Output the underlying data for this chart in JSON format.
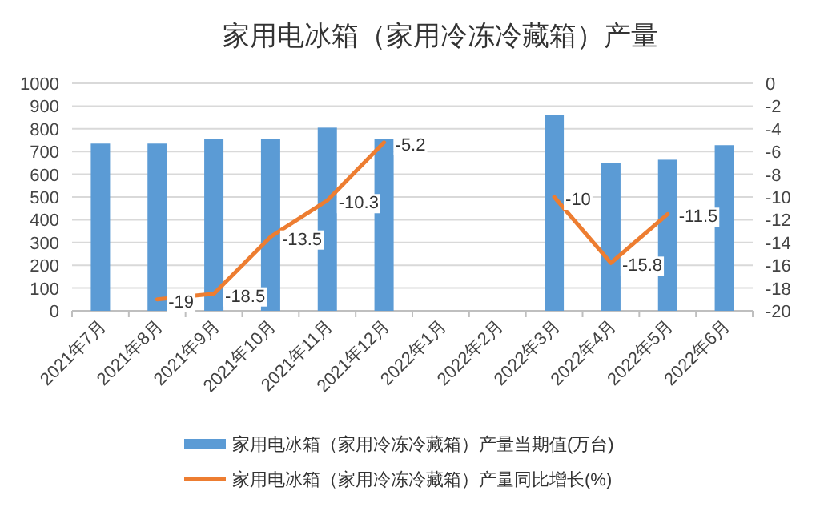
{
  "chart_data": {
    "type": "bar",
    "title": "家用电冰箱（家用冷冻冷藏箱）产量",
    "categories": [
      "2021年7月",
      "2021年8月",
      "2021年9月",
      "2021年10月",
      "2021年11月",
      "2021年12月",
      "2022年1月",
      "2022年2月",
      "2022年3月",
      "2022年4月",
      "2022年5月",
      "2022年6月"
    ],
    "series": [
      {
        "name": "家用电冰箱（家用冷冻冷藏箱）产量当期值(万台)",
        "color": "#5b9bd5",
        "values": [
          735,
          735,
          756,
          756,
          805,
          756,
          null,
          null,
          861,
          650,
          664,
          728
        ]
      },
      {
        "name": "家用电冰箱（家用冷冻冷藏箱）产量同比增长(%)",
        "type": "line",
        "axis": "y2",
        "color": "#ed7d31",
        "values": [
          null,
          -19,
          -18.5,
          -13.5,
          -10.3,
          -5.2,
          null,
          null,
          -10,
          -15.8,
          -11.5,
          null
        ],
        "value_labels": [
          null,
          "-19",
          "-18.5",
          "-13.5",
          "-10.3",
          "-5.2",
          null,
          null,
          "-10",
          "-15.8",
          "-11.5",
          null
        ]
      }
    ],
    "ylim": [
      0,
      1000
    ],
    "yticks": [
      0,
      100,
      200,
      300,
      400,
      500,
      600,
      700,
      800,
      900,
      1000
    ],
    "y2lim": [
      -20,
      0
    ],
    "y2ticks": [
      -20,
      -18,
      -16,
      -14,
      -12,
      -10,
      -8,
      -6,
      -4,
      -2,
      0
    ],
    "grid": "y",
    "legend": "bottom",
    "marker": "none",
    "line_style": "solid"
  }
}
